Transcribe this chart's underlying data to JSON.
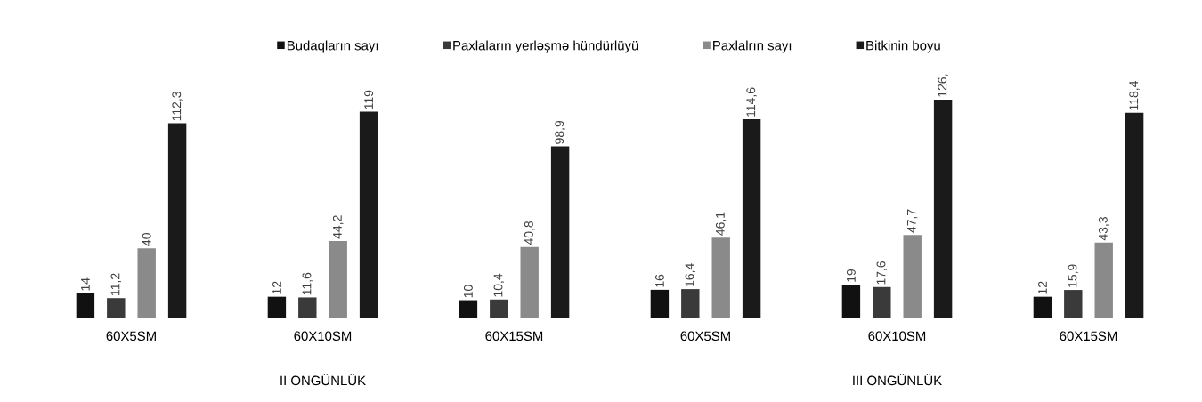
{
  "chart_data": {
    "type": "bar",
    "categories": [
      "60X5SM",
      "60X10SM",
      "60X15SM",
      "60X5SM",
      "60X10SM",
      "60X15SM"
    ],
    "series": [
      {
        "name": "Budaqların sayı",
        "color": "#111111",
        "values": [
          14,
          12,
          10,
          16,
          19,
          12
        ],
        "value_labels": [
          "14",
          "12",
          "10",
          "16",
          "19",
          "12"
        ]
      },
      {
        "name": "Paxlaların yerləşmə hündürlüyü",
        "color": "#3a3a3a",
        "values": [
          11.2,
          11.6,
          10.4,
          16.4,
          17.6,
          15.9
        ],
        "value_labels": [
          "11,2",
          "11,6",
          "10,4",
          "16,4",
          "17,6",
          "15,9"
        ]
      },
      {
        "name": "Paxlalrın sayı",
        "color": "#8a8a8a",
        "values": [
          40,
          44.2,
          40.8,
          46.1,
          47.7,
          43.3
        ],
        "value_labels": [
          "40",
          "44,2",
          "40,8",
          "46,1",
          "47,7",
          "43,3"
        ]
      },
      {
        "name": "Bitkinin boyu",
        "color": "#1a1a1a",
        "values": [
          112.3,
          119,
          98.9,
          114.6,
          126,
          118.4
        ],
        "value_labels": [
          "112,3",
          "119",
          "98,9",
          "114,6",
          "126,",
          "118,4"
        ]
      }
    ],
    "annotations": [
      "II ONGÜNLÜK",
      "III ONGÜNLÜK"
    ],
    "legend": "top"
  }
}
